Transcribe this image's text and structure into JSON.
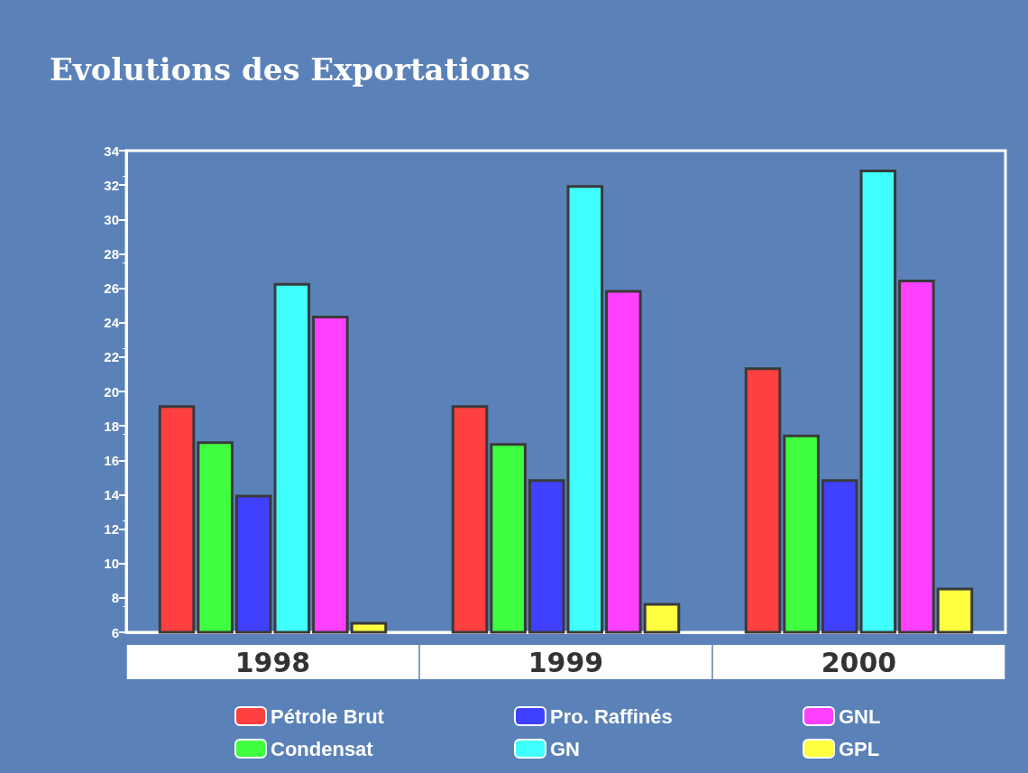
{
  "chart_data": {
    "type": "bar",
    "title": "Evolutions des Exportations",
    "categories": [
      "1998",
      "1999",
      "2000"
    ],
    "series": [
      {
        "name": "Pétrole Brut",
        "color": "#ff4040",
        "values": [
          19.2,
          19.2,
          21.4
        ]
      },
      {
        "name": "Condensat",
        "color": "#40ff40",
        "values": [
          17.1,
          17.0,
          17.5
        ]
      },
      {
        "name": "Pro. Raffinés",
        "color": "#4040ff",
        "values": [
          14.0,
          14.9,
          14.9
        ]
      },
      {
        "name": "GN",
        "color": "#40ffff",
        "values": [
          26.3,
          32.0,
          32.9
        ]
      },
      {
        "name": "GNL",
        "color": "#ff40ff",
        "values": [
          24.4,
          25.9,
          26.5
        ]
      },
      {
        "name": "GPL",
        "color": "#ffff40",
        "values": [
          6.6,
          7.7,
          8.6
        ]
      }
    ],
    "ylim": [
      6,
      34
    ],
    "yticks": [
      6,
      8,
      10,
      12,
      14,
      16,
      18,
      20,
      22,
      24,
      26,
      28,
      30,
      32,
      34
    ],
    "grid": false,
    "legend": "bottom"
  }
}
